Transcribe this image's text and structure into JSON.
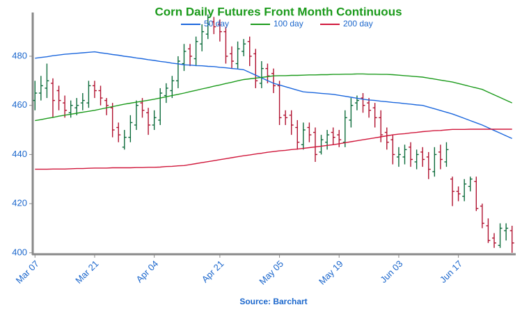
{
  "chart_data": {
    "type": "ohlc",
    "title": "Corn Daily Futures Front Month Continuous",
    "source": "Source: Barchart",
    "categories": [
      "Mar 07",
      null,
      null,
      null,
      null,
      null,
      null,
      null,
      null,
      null,
      "Mar 21",
      null,
      null,
      null,
      null,
      null,
      null,
      null,
      null,
      null,
      "Apr 04",
      null,
      null,
      null,
      null,
      null,
      null,
      null,
      null,
      null,
      null,
      "Apr 21",
      null,
      null,
      null,
      null,
      null,
      null,
      null,
      null,
      null,
      "May 05",
      null,
      null,
      null,
      null,
      null,
      null,
      null,
      null,
      null,
      "May 19",
      null,
      null,
      null,
      null,
      null,
      null,
      null,
      null,
      null,
      "Jun 03",
      null,
      null,
      null,
      null,
      null,
      null,
      null,
      null,
      null,
      "Jun 17",
      null,
      null,
      null,
      null,
      null,
      null,
      null,
      null,
      null
    ],
    "open": [
      462,
      465,
      467,
      469,
      466,
      461,
      457,
      459,
      461,
      461,
      468,
      466,
      462,
      459,
      451,
      443,
      447,
      452,
      461,
      457,
      452,
      454,
      464,
      466,
      470,
      477,
      483,
      479,
      485,
      489,
      494,
      493,
      490,
      481,
      477,
      482,
      486,
      481,
      469,
      475,
      473,
      468,
      456,
      456,
      451,
      444,
      451,
      449,
      441,
      445,
      449,
      448,
      445,
      454,
      461,
      463,
      461,
      459,
      455,
      449,
      446,
      439,
      439,
      443,
      437,
      441,
      439,
      433,
      441,
      437,
      430,
      425,
      423,
      427,
      429,
      419,
      411,
      406,
      403,
      409,
      409
    ],
    "high": [
      470,
      472,
      477,
      471,
      468,
      464,
      462,
      463,
      465,
      470,
      470,
      468,
      463,
      461,
      453,
      450,
      456,
      462,
      463,
      459,
      458,
      467,
      469,
      472,
      480,
      485,
      485,
      488,
      493,
      497,
      496,
      495,
      492,
      484,
      486,
      487,
      488,
      483,
      478,
      477,
      475,
      470,
      458,
      458,
      454,
      453,
      453,
      451,
      448,
      450,
      451,
      450,
      458,
      463,
      464,
      465,
      463,
      461,
      458,
      451,
      448,
      443,
      444,
      445,
      442,
      443,
      441,
      443,
      444,
      445,
      431,
      427,
      430,
      431,
      431,
      420,
      414,
      408,
      412,
      412,
      411
    ],
    "low": [
      458,
      462,
      463,
      455,
      458,
      455,
      455,
      456,
      458,
      459,
      463,
      460,
      456,
      447,
      445,
      442,
      445,
      450,
      455,
      448,
      450,
      452,
      461,
      463,
      467,
      474,
      476,
      476,
      482,
      487,
      489,
      486,
      477,
      475,
      475,
      480,
      476,
      467,
      467,
      469,
      465,
      452,
      452,
      448,
      442,
      442,
      445,
      437,
      440,
      442,
      444,
      443,
      443,
      451,
      458,
      457,
      455,
      451,
      445,
      442,
      436,
      435,
      436,
      435,
      434,
      435,
      430,
      431,
      434,
      435,
      419,
      421,
      421,
      425,
      417,
      410,
      404,
      402,
      402,
      405,
      400
    ],
    "close": [
      465,
      468,
      470,
      462,
      462,
      458,
      460,
      460,
      462,
      468,
      466,
      463,
      460,
      450,
      448,
      447,
      453,
      460,
      458,
      452,
      455,
      465,
      467,
      470,
      478,
      482,
      480,
      486,
      490,
      493,
      492,
      490,
      480,
      478,
      483,
      485,
      480,
      470,
      475,
      472,
      468,
      455,
      455,
      452,
      445,
      450,
      448,
      440,
      446,
      448,
      447,
      446,
      455,
      460,
      462,
      460,
      458,
      455,
      448,
      445,
      440,
      440,
      442,
      438,
      440,
      438,
      434,
      440,
      438,
      442,
      425,
      424,
      428,
      430,
      418,
      412,
      405,
      404,
      410,
      410,
      404
    ],
    "up_color": "#0b6b3a",
    "down_color": "#b0102e",
    "series": [
      {
        "name": "50 day",
        "color": "#1a66dd",
        "values": [
          479.2,
          479.5,
          479.8,
          480.2,
          480.5,
          480.8,
          481.0,
          481.2,
          481.4,
          481.6,
          481.8,
          481.4,
          481.1,
          480.7,
          480.4,
          480.0,
          479.7,
          479.3,
          479.0,
          478.6,
          478.3,
          477.9,
          477.6,
          477.2,
          476.9,
          476.5,
          476.4,
          476.2,
          476.1,
          475.9,
          475.8,
          475.5,
          475.3,
          475.0,
          474.8,
          474.5,
          473.4,
          472.3,
          471.2,
          470.1,
          469.0,
          468.3,
          467.6,
          466.9,
          466.2,
          465.5,
          465.3,
          465.1,
          464.9,
          464.7,
          464.5,
          464.1,
          463.7,
          463.3,
          462.9,
          462.5,
          462.2,
          462.0,
          461.7,
          461.5,
          461.2,
          461.0,
          460.7,
          460.5,
          460.2,
          460.0,
          459.3,
          458.6,
          457.9,
          457.2,
          456.5,
          455.6,
          454.7,
          453.8,
          452.9,
          452.0,
          450.9,
          449.8,
          448.7,
          447.6,
          446.5
        ]
      },
      {
        "name": "100 day",
        "color": "#1a9a1a",
        "values": [
          453.8,
          454.2,
          454.7,
          455.1,
          455.6,
          456.0,
          456.4,
          456.8,
          457.2,
          457.6,
          458.0,
          458.5,
          459.0,
          459.5,
          460.0,
          460.5,
          460.9,
          461.3,
          461.7,
          462.1,
          462.5,
          463.0,
          463.5,
          464.0,
          464.5,
          465.0,
          465.6,
          466.1,
          466.7,
          467.2,
          467.8,
          468.3,
          468.9,
          469.4,
          470.0,
          470.5,
          470.8,
          471.1,
          471.4,
          471.7,
          472.0,
          472.1,
          472.1,
          472.2,
          472.2,
          472.3,
          472.4,
          472.4,
          472.5,
          472.5,
          472.6,
          472.6,
          472.7,
          472.7,
          472.8,
          472.8,
          472.7,
          472.7,
          472.6,
          472.6,
          472.5,
          472.3,
          472.1,
          471.9,
          471.7,
          471.5,
          471.1,
          470.7,
          470.3,
          469.9,
          469.5,
          468.9,
          468.3,
          467.7,
          467.1,
          466.5,
          465.4,
          464.3,
          463.2,
          462.1,
          461.0
        ]
      },
      {
        "name": "200 day",
        "color": "#d0163a",
        "values": [
          434.0,
          434.0,
          434.0,
          434.1,
          434.1,
          434.1,
          434.2,
          434.3,
          434.3,
          434.4,
          434.5,
          434.5,
          434.5,
          434.6,
          434.6,
          434.6,
          434.6,
          434.7,
          434.7,
          434.8,
          434.8,
          434.9,
          435.1,
          435.2,
          435.4,
          435.5,
          435.9,
          436.3,
          436.7,
          437.1,
          437.5,
          437.9,
          438.3,
          438.7,
          439.1,
          439.5,
          439.8,
          440.2,
          440.5,
          440.9,
          441.2,
          441.5,
          441.7,
          442.0,
          442.2,
          442.5,
          442.8,
          443.1,
          443.4,
          443.7,
          444.0,
          444.4,
          444.8,
          445.2,
          445.6,
          446.0,
          446.4,
          446.8,
          447.2,
          447.6,
          448.0,
          448.3,
          448.5,
          448.8,
          449.0,
          449.3,
          449.5,
          449.7,
          449.8,
          450.0,
          450.2,
          450.2,
          450.2,
          450.3,
          450.3,
          450.3,
          450.3,
          450.3,
          450.3,
          450.3,
          450.3
        ]
      }
    ],
    "ylim": [
      399.4,
      497.8
    ],
    "yticks": [
      400,
      420,
      440,
      460,
      480
    ],
    "grid": false,
    "legend": "top"
  }
}
